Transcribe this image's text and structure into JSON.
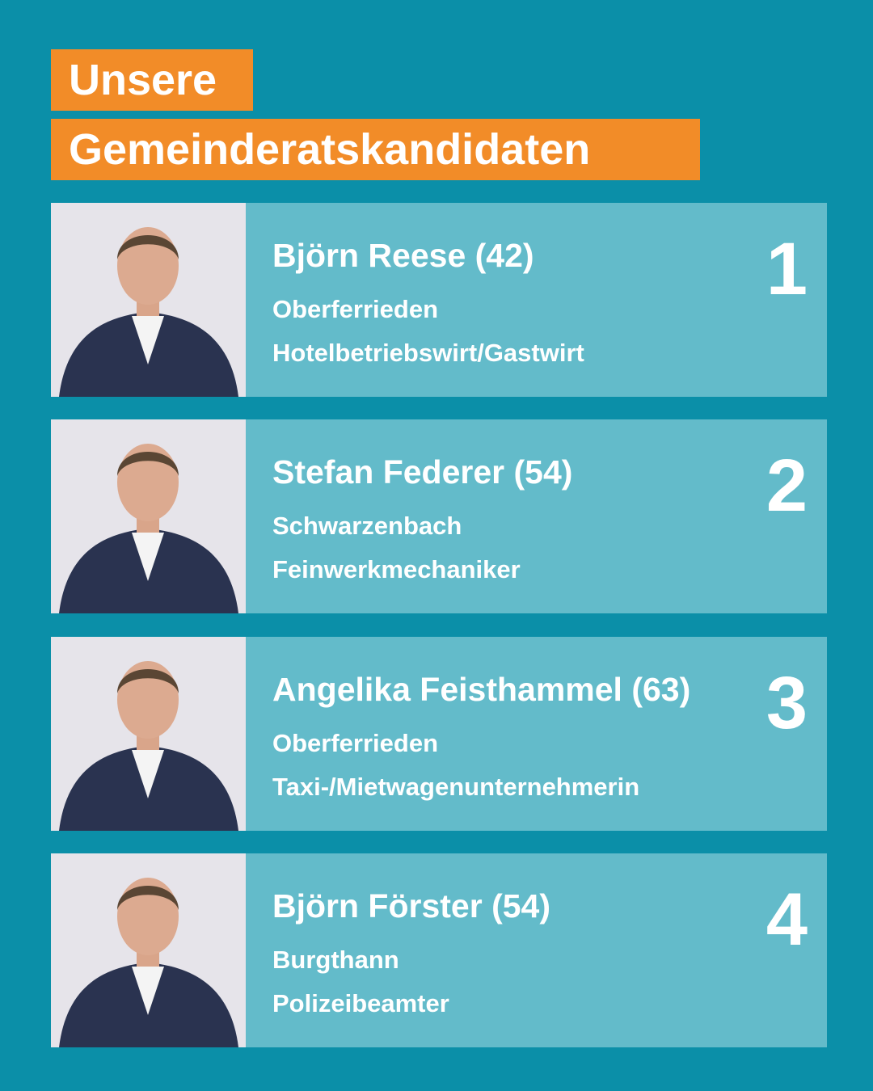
{
  "header": {
    "title_lines": [
      "Unsere",
      "Gemeinderatskandidaten"
    ]
  },
  "candidates": [
    {
      "name": "Björn Reese (42)",
      "place": "Oberferrieden",
      "profession": "Hotelbetriebswirt/Gastwirt",
      "rank": 1
    },
    {
      "name": "Stefan Federer (54)",
      "place": "Schwarzenbach",
      "profession": "Feinwerkmechaniker",
      "rank": 2
    },
    {
      "name": "Angelika Feisthammel (63)",
      "place": "Oberferrieden",
      "profession": "Taxi-/Mietwagenunternehmerin",
      "rank": 3
    },
    {
      "name": "Björn Förster (54)",
      "place": "Burgthann",
      "profession": "Polizeibeamter",
      "rank": 4
    }
  ]
}
